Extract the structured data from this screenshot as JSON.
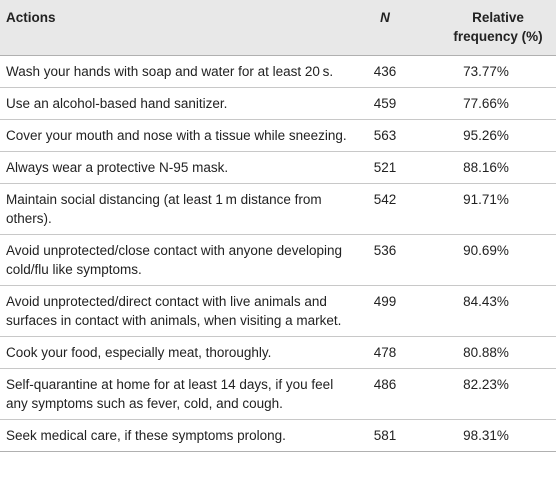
{
  "table": {
    "header": [
      "Actions",
      "N",
      "Relative frequency (%)"
    ],
    "rows": [
      [
        "Wash your hands with soap and water for at least 20 s.",
        "436",
        "73.77%"
      ],
      [
        "Use an alcohol-based hand sanitizer.",
        "459",
        "77.66%"
      ],
      [
        "Cover your mouth and nose with a tissue while sneezing.",
        "563",
        "95.26%"
      ],
      [
        "Always wear a protective N-95 mask.",
        "521",
        "88.16%"
      ],
      [
        "Maintain social distancing (at least 1 m distance from others).",
        "542",
        "91.71%"
      ],
      [
        "Avoid unprotected/close contact with anyone developing cold/flu like symptoms.",
        "536",
        "90.69%"
      ],
      [
        "Avoid unprotected/direct contact with live animals and surfaces in contact with animals, when visiting a market.",
        "499",
        "84.43%"
      ],
      [
        "Cook your food, especially meat, thoroughly.",
        "478",
        "80.88%"
      ],
      [
        "Self-quarantine at home for at least 14 days, if you feel any symptoms such as fever, cold, and cough.",
        "486",
        "82.23%"
      ],
      [
        "Seek medical care, if these symptoms prolong.",
        "581",
        "98.31%"
      ]
    ]
  }
}
